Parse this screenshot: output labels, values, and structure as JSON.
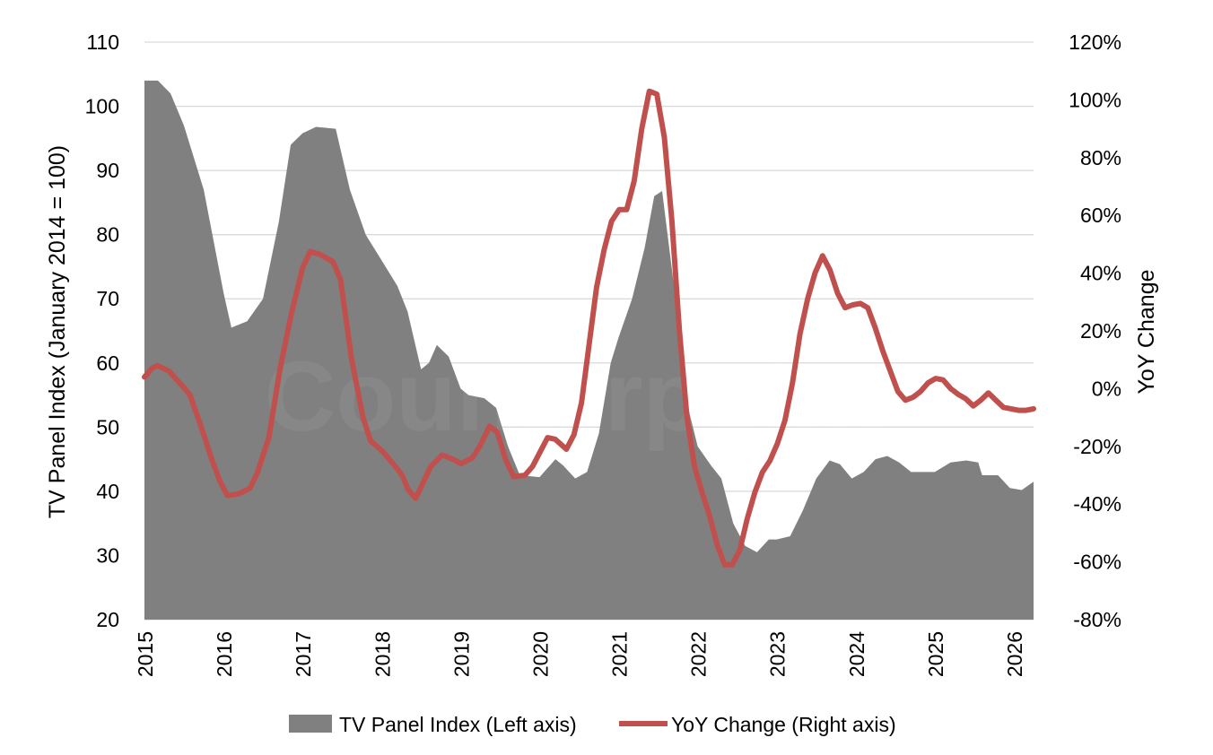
{
  "chart_data": {
    "type": "area+line",
    "watermark": "Counterpoint",
    "left_axis": {
      "label": "TV Panel Index (January 2014 = 100)",
      "range": [
        20,
        110
      ],
      "ticks": [
        "20",
        "30",
        "40",
        "50",
        "60",
        "70",
        "80",
        "90",
        "100",
        "110"
      ]
    },
    "right_axis": {
      "label": "YoY Change",
      "range": [
        -80,
        120
      ],
      "ticks": [
        "-80%",
        "-60%",
        "-40%",
        "-20%",
        "0%",
        "20%",
        "40%",
        "60%",
        "80%",
        "100%",
        "120%"
      ]
    },
    "x_axis": {
      "range": [
        2015,
        2026.25
      ],
      "ticks": [
        "2015",
        "2016",
        "2017",
        "2018",
        "2019",
        "2020",
        "2021",
        "2022",
        "2023",
        "2024",
        "2025",
        "2026"
      ]
    },
    "grid": true,
    "legend": {
      "placement": "bottom"
    },
    "series": [
      {
        "name": "TV Panel Index (Left axis)",
        "type": "area",
        "axis": "left",
        "color": "#808080",
        "points": [
          [
            2015.0,
            104
          ],
          [
            2015.17,
            104
          ],
          [
            2015.33,
            102
          ],
          [
            2015.5,
            97
          ],
          [
            2015.75,
            87
          ],
          [
            2016.0,
            71
          ],
          [
            2016.1,
            65.5
          ],
          [
            2016.3,
            66.5
          ],
          [
            2016.5,
            70
          ],
          [
            2016.7,
            82
          ],
          [
            2016.85,
            94
          ],
          [
            2017.0,
            95.8
          ],
          [
            2017.17,
            96.8
          ],
          [
            2017.42,
            96.5
          ],
          [
            2017.6,
            87
          ],
          [
            2017.8,
            80
          ],
          [
            2018.0,
            76
          ],
          [
            2018.2,
            72
          ],
          [
            2018.33,
            68
          ],
          [
            2018.5,
            59
          ],
          [
            2018.6,
            60
          ],
          [
            2018.7,
            62.8
          ],
          [
            2018.85,
            61
          ],
          [
            2019.0,
            56
          ],
          [
            2019.1,
            55
          ],
          [
            2019.3,
            54.5
          ],
          [
            2019.45,
            53
          ],
          [
            2019.6,
            47
          ],
          [
            2019.75,
            42.5
          ],
          [
            2020.0,
            42.2
          ],
          [
            2020.2,
            45
          ],
          [
            2020.3,
            44
          ],
          [
            2020.45,
            42
          ],
          [
            2020.6,
            43
          ],
          [
            2020.75,
            49
          ],
          [
            2020.9,
            60
          ],
          [
            2021.0,
            64
          ],
          [
            2021.17,
            70
          ],
          [
            2021.33,
            78
          ],
          [
            2021.45,
            86
          ],
          [
            2021.55,
            86.8
          ],
          [
            2021.7,
            72
          ],
          [
            2021.8,
            58
          ],
          [
            2021.9,
            52
          ],
          [
            2022.0,
            47
          ],
          [
            2022.17,
            44
          ],
          [
            2022.3,
            42
          ],
          [
            2022.45,
            35
          ],
          [
            2022.6,
            31.5
          ],
          [
            2022.75,
            30.5
          ],
          [
            2022.9,
            32.5
          ],
          [
            2023.0,
            32.5
          ],
          [
            2023.17,
            33
          ],
          [
            2023.33,
            37
          ],
          [
            2023.5,
            42
          ],
          [
            2023.67,
            44.8
          ],
          [
            2023.8,
            44.2
          ],
          [
            2023.95,
            42
          ],
          [
            2024.1,
            43
          ],
          [
            2024.25,
            45
          ],
          [
            2024.4,
            45.5
          ],
          [
            2024.55,
            44.5
          ],
          [
            2024.7,
            43
          ],
          [
            2025.0,
            43
          ],
          [
            2025.2,
            44.5
          ],
          [
            2025.4,
            44.8
          ],
          [
            2025.55,
            44.5
          ],
          [
            2025.6,
            42.5
          ],
          [
            2025.8,
            42.5
          ],
          [
            2025.95,
            40.5
          ],
          [
            2026.1,
            40.2
          ],
          [
            2026.25,
            41.5
          ]
        ]
      },
      {
        "name": "YoY Change (Right axis)",
        "type": "line",
        "axis": "right",
        "color": "#c0504d",
        "points": [
          [
            2015.0,
            4
          ],
          [
            2015.1,
            7
          ],
          [
            2015.17,
            8
          ],
          [
            2015.33,
            6
          ],
          [
            2015.5,
            1
          ],
          [
            2015.6,
            -2
          ],
          [
            2015.75,
            -13
          ],
          [
            2015.9,
            -25
          ],
          [
            2016.0,
            -32
          ],
          [
            2016.1,
            -37
          ],
          [
            2016.25,
            -36.5
          ],
          [
            2016.4,
            -34.5
          ],
          [
            2016.5,
            -29
          ],
          [
            2016.65,
            -17
          ],
          [
            2016.8,
            7
          ],
          [
            2016.95,
            26
          ],
          [
            2017.1,
            42
          ],
          [
            2017.2,
            47.5
          ],
          [
            2017.33,
            46.5
          ],
          [
            2017.5,
            44
          ],
          [
            2017.6,
            38
          ],
          [
            2017.75,
            10
          ],
          [
            2017.9,
            -10
          ],
          [
            2018.0,
            -18
          ],
          [
            2018.17,
            -22
          ],
          [
            2018.33,
            -27
          ],
          [
            2018.42,
            -30
          ],
          [
            2018.5,
            -35
          ],
          [
            2018.6,
            -38
          ],
          [
            2018.8,
            -27
          ],
          [
            2018.95,
            -23
          ],
          [
            2019.1,
            -24.5
          ],
          [
            2019.2,
            -26
          ],
          [
            2019.35,
            -24
          ],
          [
            2019.45,
            -20
          ],
          [
            2019.58,
            -13
          ],
          [
            2019.68,
            -15
          ],
          [
            2019.8,
            -25
          ],
          [
            2019.9,
            -30.5
          ],
          [
            2020.05,
            -30
          ],
          [
            2020.15,
            -27
          ],
          [
            2020.25,
            -22
          ],
          [
            2020.35,
            -17
          ],
          [
            2020.45,
            -17.5
          ],
          [
            2020.6,
            -21
          ],
          [
            2020.7,
            -16
          ],
          [
            2020.8,
            -5
          ],
          [
            2020.9,
            15
          ],
          [
            2021.0,
            35
          ],
          [
            2021.1,
            48
          ],
          [
            2021.2,
            58
          ],
          [
            2021.3,
            62
          ],
          [
            2021.4,
            62
          ],
          [
            2021.5,
            72
          ],
          [
            2021.6,
            90
          ],
          [
            2021.7,
            103
          ],
          [
            2021.8,
            102
          ],
          [
            2021.9,
            87
          ],
          [
            2022.0,
            58
          ],
          [
            2022.1,
            20
          ],
          [
            2022.2,
            -10
          ],
          [
            2022.3,
            -27
          ],
          [
            2022.4,
            -36
          ],
          [
            2022.5,
            -44
          ],
          [
            2022.6,
            -54
          ],
          [
            2022.7,
            -61
          ],
          [
            2022.8,
            -61
          ],
          [
            2022.9,
            -56
          ],
          [
            2023.0,
            -45
          ],
          [
            2023.1,
            -36
          ],
          [
            2023.2,
            -29
          ],
          [
            2023.3,
            -25
          ],
          [
            2023.4,
            -19
          ],
          [
            2023.5,
            -11
          ],
          [
            2023.6,
            2
          ],
          [
            2023.7,
            19
          ],
          [
            2023.8,
            31
          ],
          [
            2023.9,
            40
          ],
          [
            2024.0,
            46
          ],
          [
            2024.1,
            41
          ],
          [
            2024.2,
            33
          ],
          [
            2024.3,
            28
          ],
          [
            2024.4,
            29
          ],
          [
            2024.5,
            29.5
          ],
          [
            2024.6,
            28
          ],
          [
            2024.7,
            21
          ],
          [
            2024.8,
            13
          ],
          [
            2024.9,
            6
          ],
          [
            2025.0,
            -1
          ],
          [
            2025.1,
            -4
          ],
          [
            2025.2,
            -3
          ],
          [
            2025.3,
            -1
          ],
          [
            2025.4,
            2
          ],
          [
            2025.5,
            3.5
          ],
          [
            2025.6,
            3
          ],
          [
            2025.7,
            0
          ],
          [
            2025.8,
            -2
          ],
          [
            2025.9,
            -3.5
          ],
          [
            2026.0,
            -6
          ],
          [
            2026.1,
            -4
          ],
          [
            2026.2,
            -1.5
          ],
          [
            2026.3,
            -4
          ],
          [
            2026.4,
            -6.5
          ],
          [
            2026.5,
            -7
          ],
          [
            2026.6,
            -7.5
          ],
          [
            2026.7,
            -7.5
          ],
          [
            2026.8,
            -7
          ]
        ]
      }
    ]
  }
}
